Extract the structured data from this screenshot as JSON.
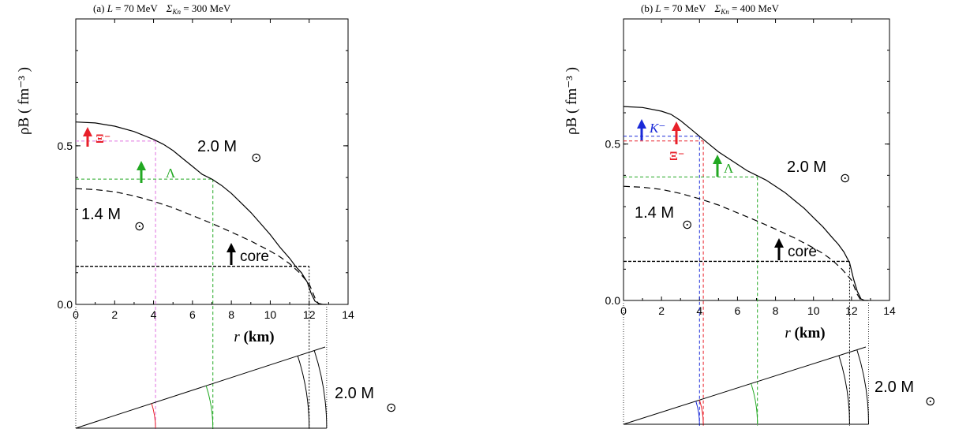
{
  "chart_data": [
    {
      "type": "line",
      "title_prefix": "(a)",
      "title_L": "L",
      "title_L_value": "= 70 MeV",
      "title_sigma": "Σ",
      "title_sigma_sub": "Kn",
      "title_sigma_value": "= 300 MeV",
      "xlabel": "r",
      "xlabel_unit": "(km)",
      "ylabel": "ρB ( fm⁻³ )",
      "xlim": [
        0,
        14
      ],
      "ylim": [
        0,
        0.9
      ],
      "xticks": [
        "0",
        "2",
        "4",
        "6",
        "8",
        "10",
        "12",
        "14"
      ],
      "yticks": [
        {
          "value": 0.0,
          "label": "0.0"
        },
        {
          "value": 0.5,
          "label": "0.5"
        }
      ],
      "series": [
        {
          "name": "2.0 M☉",
          "style": "solid",
          "color": "#000000",
          "x": [
            0,
            1,
            2,
            3,
            4,
            4.5,
            5,
            5.5,
            6,
            6.5,
            7,
            7.5,
            8,
            8.5,
            9,
            9.5,
            10,
            10.5,
            11,
            11.3,
            11.6,
            11.9,
            12.1,
            12.3,
            12.5,
            12.7,
            12.9
          ],
          "y": [
            0.575,
            0.572,
            0.562,
            0.545,
            0.52,
            0.505,
            0.485,
            0.46,
            0.435,
            0.41,
            0.395,
            0.375,
            0.35,
            0.32,
            0.29,
            0.255,
            0.22,
            0.18,
            0.145,
            0.12,
            0.1,
            0.07,
            0.035,
            0.01,
            0.003,
            0.0,
            0.0
          ]
        },
        {
          "name": "1.4 M☉",
          "style": "dashed",
          "color": "#000000",
          "x": [
            0,
            1,
            2,
            3,
            4,
            5,
            6,
            7,
            8,
            9,
            10,
            10.5,
            11,
            11.5,
            12,
            12.3,
            12.5
          ],
          "y": [
            0.365,
            0.362,
            0.355,
            0.342,
            0.325,
            0.305,
            0.28,
            0.255,
            0.228,
            0.2,
            0.168,
            0.15,
            0.128,
            0.1,
            0.065,
            0.02,
            0.0
          ]
        }
      ],
      "thresholds": [
        {
          "label": "Ξ⁻",
          "color": "#e8202a",
          "line_color": "#e070e0",
          "rho": 0.515,
          "r": 4.1
        },
        {
          "label": "Λ",
          "color": "#22a822",
          "line_color": "#22a822",
          "rho": 0.395,
          "r": 7.05
        },
        {
          "label": "core",
          "color": "#000000",
          "line_color": "#000000",
          "rho": 0.12,
          "r": 12.0
        }
      ],
      "curve_labels": [
        {
          "text": "2.0 M",
          "r": 8.2,
          "rho": 0.5
        },
        {
          "text": "1.4 M",
          "r": 0.4,
          "rho": 0.295
        }
      ],
      "schematic_label": "2.0 M",
      "annotations": {
        "xi": "Ξ⁻",
        "lambda": "Λ",
        "core": "core"
      }
    },
    {
      "type": "line",
      "title_prefix": "(b)",
      "title_L": "L",
      "title_L_value": "= 70 MeV",
      "title_sigma": "Σ",
      "title_sigma_sub": "Kn",
      "title_sigma_value": "= 400 MeV",
      "xlabel": "r",
      "xlabel_unit": "(km)",
      "ylabel": "ρB ( fm⁻³ )",
      "xlim": [
        0,
        14
      ],
      "ylim": [
        0,
        0.9
      ],
      "xticks": [
        "0",
        "2",
        "4",
        "6",
        "8",
        "10",
        "12",
        "14"
      ],
      "yticks": [
        {
          "value": 0.0,
          "label": "0.0"
        },
        {
          "value": 0.5,
          "label": "0.5"
        }
      ],
      "series": [
        {
          "name": "2.0 M☉",
          "style": "solid",
          "color": "#000000",
          "x": [
            0,
            1,
            2,
            2.5,
            3,
            3.5,
            4,
            4.5,
            5,
            5.5,
            6,
            6.5,
            7,
            7.5,
            8,
            8.5,
            9,
            9.5,
            10,
            10.5,
            11,
            11.3,
            11.6,
            11.9,
            12.1,
            12.3,
            12.5,
            12.7,
            12.9
          ],
          "y": [
            0.62,
            0.617,
            0.605,
            0.595,
            0.575,
            0.55,
            0.525,
            0.5,
            0.475,
            0.455,
            0.435,
            0.415,
            0.4,
            0.385,
            0.365,
            0.345,
            0.32,
            0.295,
            0.265,
            0.235,
            0.2,
            0.18,
            0.155,
            0.12,
            0.07,
            0.03,
            0.005,
            0.0,
            0.0
          ]
        },
        {
          "name": "1.4 M☉",
          "style": "dashed",
          "color": "#000000",
          "x": [
            0,
            1,
            2,
            3,
            4,
            5,
            6,
            7,
            8,
            9,
            10,
            10.5,
            11,
            11.5,
            12,
            12.3,
            12.5
          ],
          "y": [
            0.365,
            0.362,
            0.355,
            0.342,
            0.325,
            0.305,
            0.28,
            0.255,
            0.228,
            0.2,
            0.168,
            0.15,
            0.128,
            0.1,
            0.065,
            0.02,
            0.0
          ]
        }
      ],
      "thresholds": [
        {
          "label": "K⁻",
          "color": "#1a2ad8",
          "line_color": "#1a2ad8",
          "rho": 0.525,
          "r": 4.0
        },
        {
          "label": "Ξ⁻",
          "color": "#e8202a",
          "line_color": "#e8202a",
          "rho": 0.51,
          "r": 4.2
        },
        {
          "label": "Λ",
          "color": "#22a822",
          "line_color": "#22a822",
          "rho": 0.395,
          "r": 7.05
        },
        {
          "label": "core",
          "color": "#000000",
          "line_color": "#000000",
          "rho": 0.125,
          "r": 11.9
        }
      ],
      "curve_labels": [
        {
          "text": "2.0 M",
          "r": 10.2,
          "rho": 0.475
        },
        {
          "text": "1.4 M",
          "r": 0.4,
          "rho": 0.28
        }
      ],
      "schematic_label": "2.0 M",
      "annotations": {
        "kaon": "K⁻",
        "xi": "Ξ⁻",
        "lambda": "Λ",
        "core": "core"
      }
    }
  ]
}
